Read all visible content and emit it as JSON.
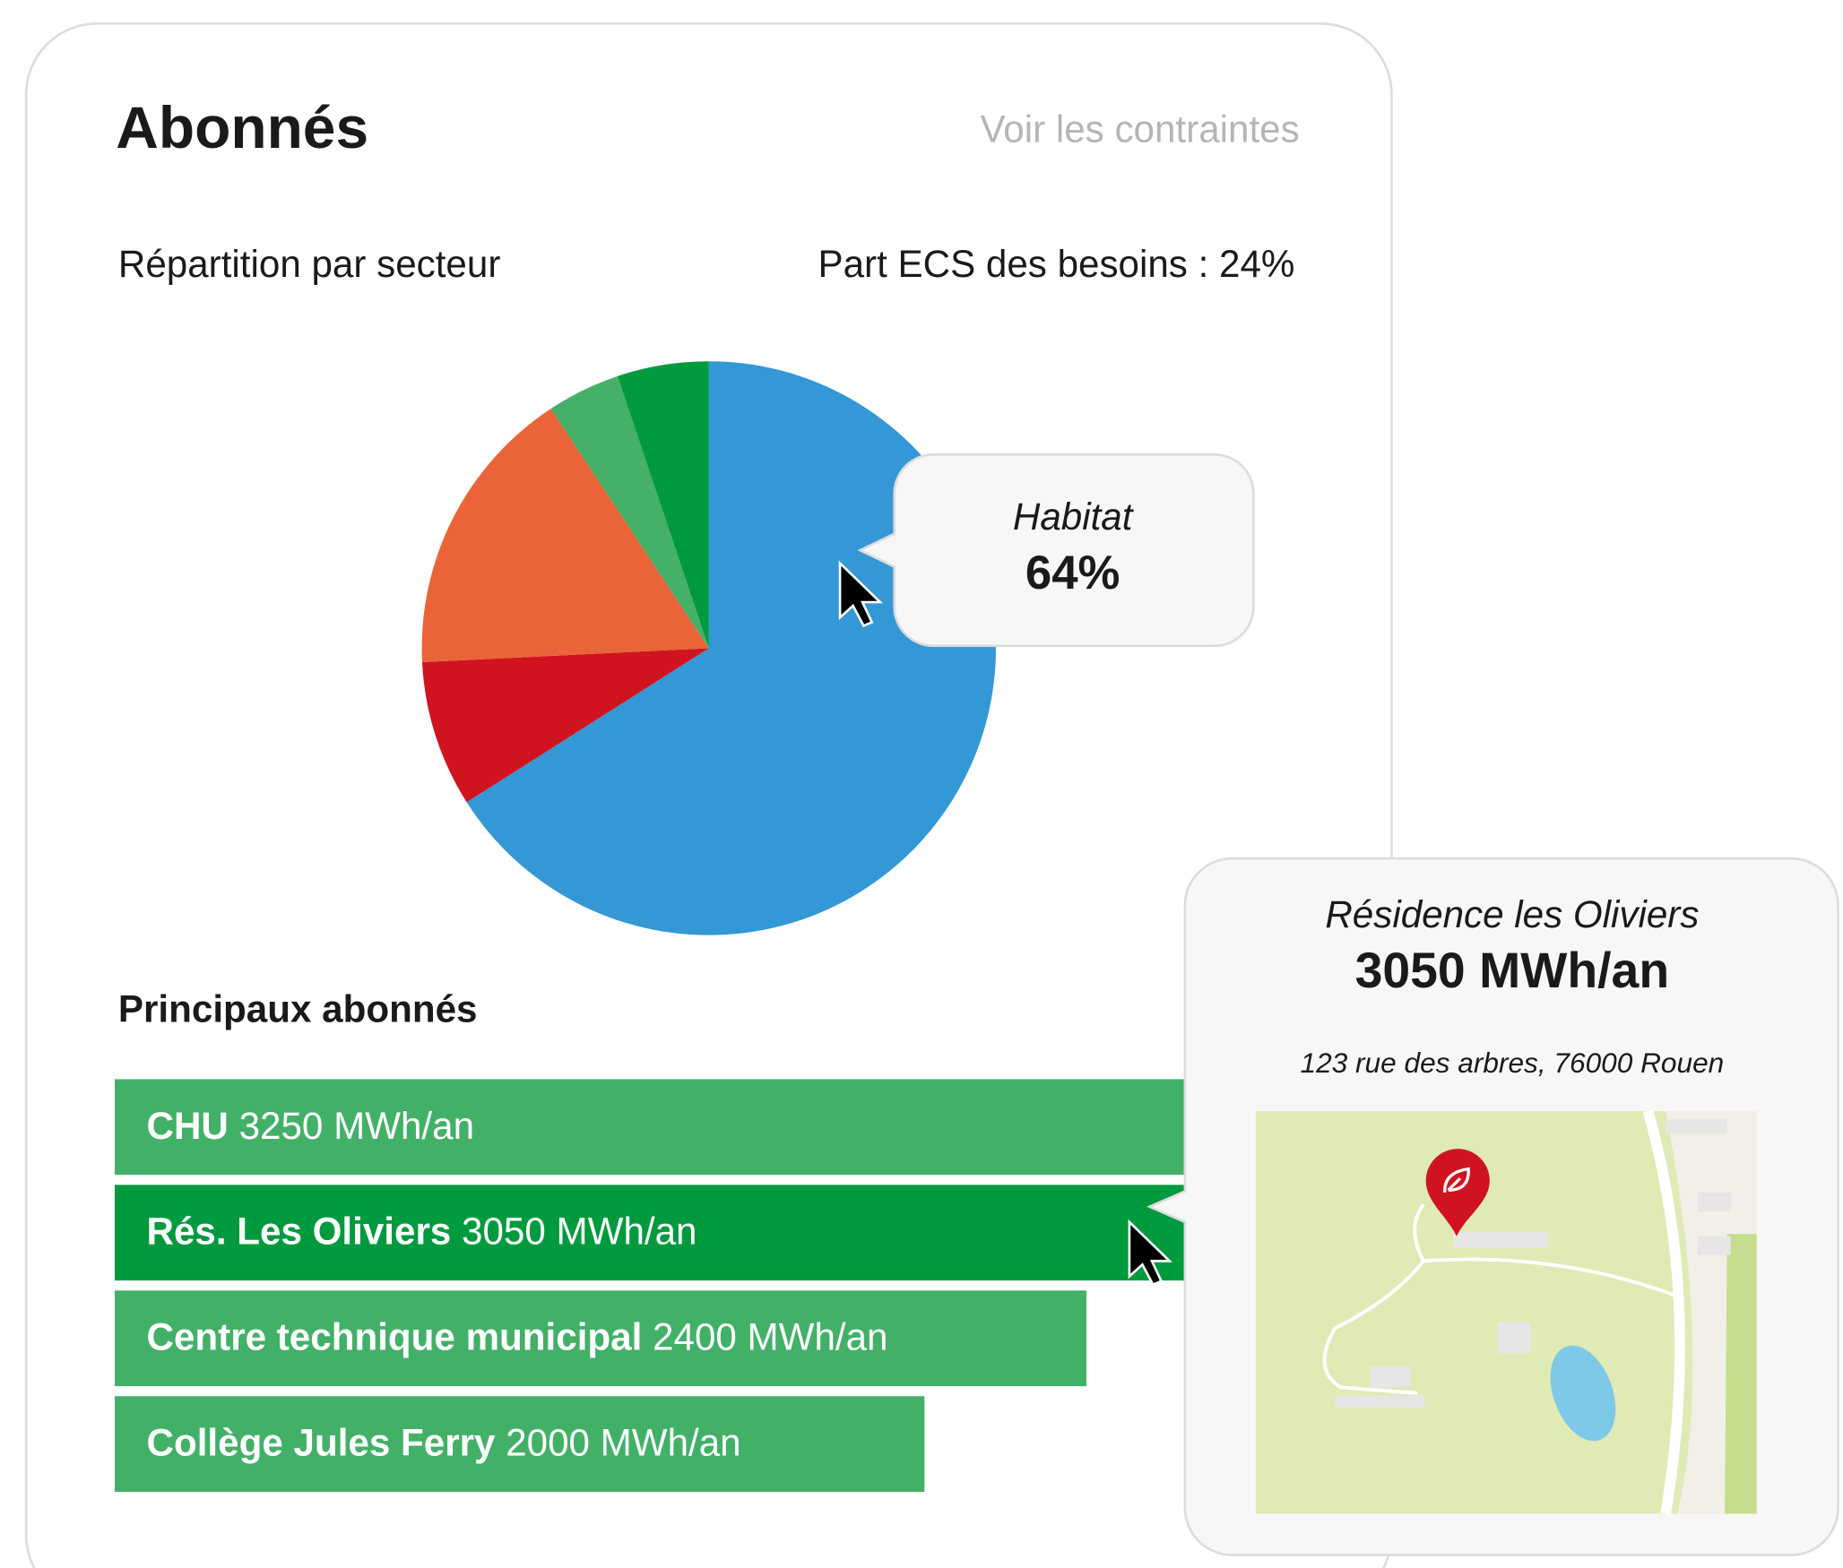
{
  "header": {
    "title": "Abonnés",
    "link": "Voir les contraintes"
  },
  "chart_data": [
    {
      "type": "pie",
      "title": "Répartition par secteur",
      "subtitle": "Part ECS des besoins : 24%",
      "categories": [
        "Habitat",
        null,
        null,
        null,
        null
      ],
      "values": [
        64,
        8,
        16,
        4,
        5
      ],
      "value_labels": [
        "64%",
        null,
        null,
        null,
        null
      ],
      "colors": [
        "#3398d5",
        "#d0141f",
        "#eb6338",
        "#45b068",
        "#009a3e"
      ]
    },
    {
      "type": "barlist",
      "title": "Principaux abonnés",
      "categories": [
        "CHU",
        "Rés. Les Oliviers",
        "Centre technique municipal",
        "Collège Jules Ferry"
      ],
      "values": [
        3250,
        3050,
        2400,
        2000
      ],
      "value_labels": [
        "3250 MWh/an",
        "3050 MWh/an",
        "2400 MWh/an",
        "2000  MWh/an"
      ],
      "colors": [
        "#43b068",
        "#009a3e",
        "#43b068",
        "#43b068"
      ]
    }
  ],
  "popup": {
    "name": "Résidence les Oliviers",
    "value": "3050 MWh/an",
    "address": "123 rue des arbres, 76000 Rouen"
  }
}
